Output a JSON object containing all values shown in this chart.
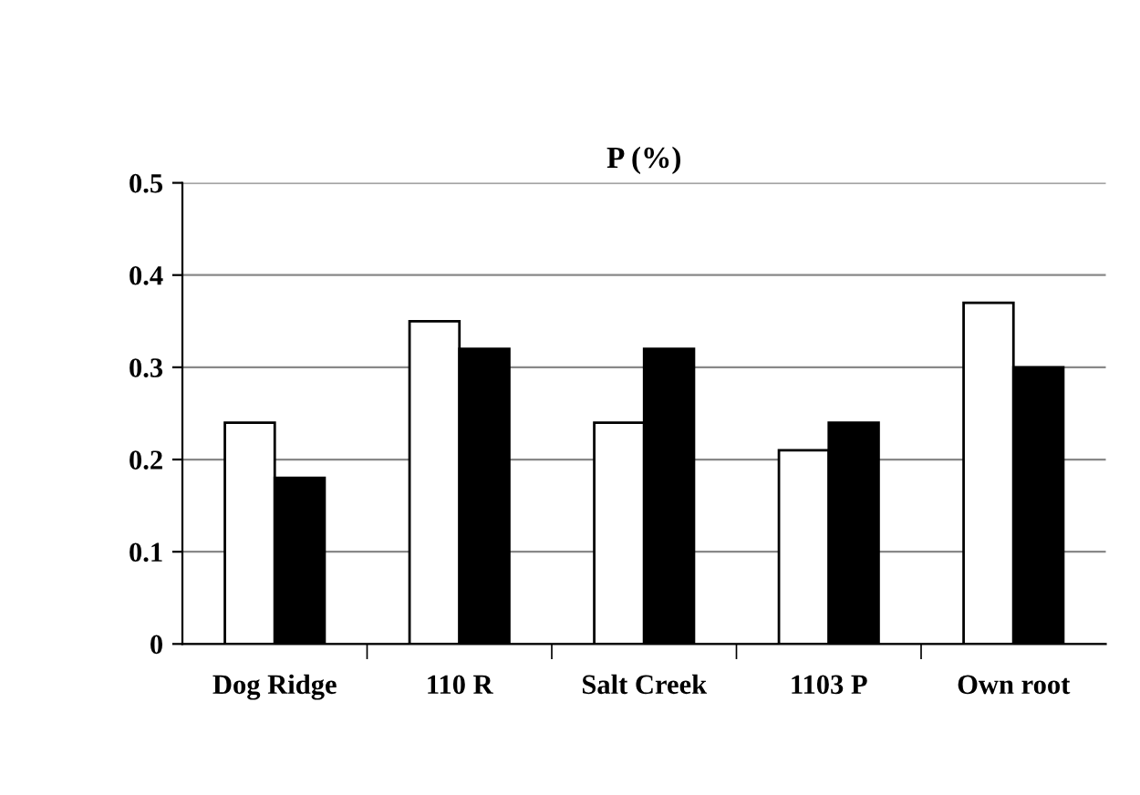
{
  "chart_data": {
    "type": "bar",
    "title": "P (%)",
    "categories": [
      "Dog Ridge",
      "110 R",
      "Salt Creek",
      "1103 P",
      "Own root"
    ],
    "series": [
      {
        "color": "#ffffff",
        "values": [
          0.24,
          0.35,
          0.24,
          0.21,
          0.37
        ]
      },
      {
        "color": "#000000",
        "values": [
          0.18,
          0.32,
          0.32,
          0.24,
          0.3
        ]
      }
    ],
    "ylim": [
      0,
      0.5
    ],
    "yticks": [
      0,
      0.1,
      0.2,
      0.3,
      0.4,
      0.5
    ],
    "grid": "y",
    "legend": false
  }
}
